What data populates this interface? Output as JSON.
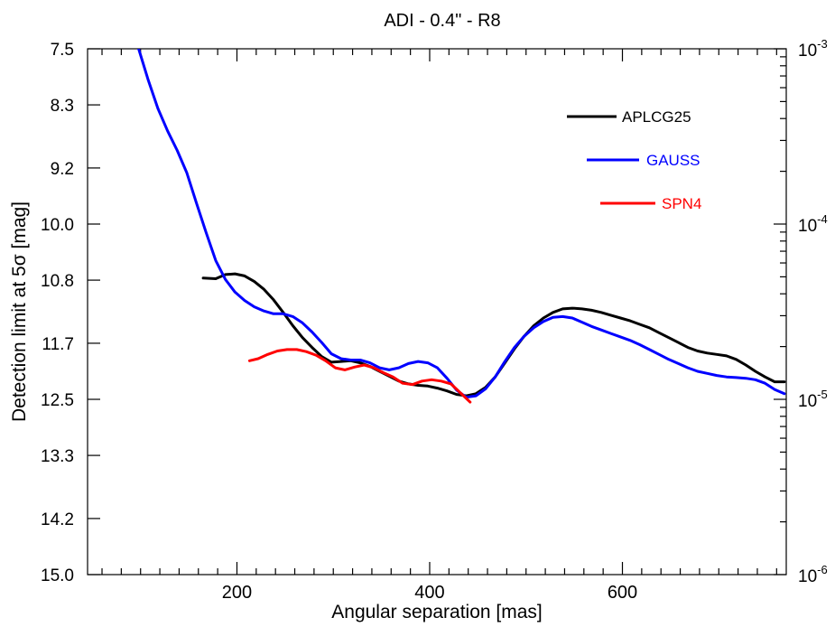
{
  "chart_data": {
    "type": "line",
    "title": "ADI -  0.4\" - R8",
    "xlabel": "Angular separation [mas]",
    "ylabel": "Detection limit at 5σ  [mag]",
    "xlim": [
      45,
      770
    ],
    "ylim": [
      7.5,
      15.0
    ],
    "y_inverted": true,
    "xticks": [
      200,
      400,
      600
    ],
    "x_minor_step": 20,
    "yticks": [
      7.5,
      8.3,
      9.2,
      10.0,
      10.8,
      11.7,
      12.5,
      13.3,
      14.2,
      15.0
    ],
    "ytick_labels": [
      "7.5",
      "8.3",
      "9.2",
      "10.0",
      "10.8",
      "11.7",
      "12.5",
      "13.3",
      "14.2",
      "15.0"
    ],
    "right_axis": {
      "scale": "log",
      "range": [
        0.001,
        1e-06
      ],
      "major_ticks": [
        {
          "value": 0.001,
          "base": "10",
          "exp": "-3"
        },
        {
          "value": 0.0001,
          "base": "10",
          "exp": "-4"
        },
        {
          "value": 1e-05,
          "base": "10",
          "exp": "-5"
        },
        {
          "value": 1e-06,
          "base": "10",
          "exp": "-6"
        }
      ]
    },
    "grid": false,
    "legend_position": "top-right",
    "series": [
      {
        "name": "APLCG25",
        "color": "#000000",
        "points": [
          [
            165,
            10.77
          ],
          [
            178,
            10.78
          ],
          [
            188,
            10.72
          ],
          [
            198,
            10.71
          ],
          [
            208,
            10.74
          ],
          [
            218,
            10.82
          ],
          [
            228,
            10.93
          ],
          [
            238,
            11.08
          ],
          [
            248,
            11.26
          ],
          [
            258,
            11.45
          ],
          [
            268,
            11.62
          ],
          [
            278,
            11.76
          ],
          [
            288,
            11.89
          ],
          [
            298,
            11.97
          ],
          [
            308,
            11.96
          ],
          [
            318,
            11.95
          ],
          [
            328,
            11.98
          ],
          [
            338,
            12.03
          ],
          [
            348,
            12.1
          ],
          [
            358,
            12.17
          ],
          [
            368,
            12.24
          ],
          [
            378,
            12.28
          ],
          [
            388,
            12.3
          ],
          [
            398,
            12.31
          ],
          [
            408,
            12.34
          ],
          [
            418,
            12.38
          ],
          [
            428,
            12.43
          ],
          [
            438,
            12.45
          ],
          [
            448,
            12.42
          ],
          [
            458,
            12.33
          ],
          [
            468,
            12.18
          ],
          [
            478,
            11.98
          ],
          [
            488,
            11.78
          ],
          [
            498,
            11.6
          ],
          [
            508,
            11.45
          ],
          [
            518,
            11.34
          ],
          [
            528,
            11.26
          ],
          [
            538,
            11.21
          ],
          [
            548,
            11.2
          ],
          [
            558,
            11.21
          ],
          [
            568,
            11.23
          ],
          [
            578,
            11.26
          ],
          [
            588,
            11.3
          ],
          [
            598,
            11.34
          ],
          [
            608,
            11.38
          ],
          [
            618,
            11.43
          ],
          [
            628,
            11.48
          ],
          [
            638,
            11.55
          ],
          [
            648,
            11.62
          ],
          [
            658,
            11.69
          ],
          [
            668,
            11.76
          ],
          [
            678,
            11.81
          ],
          [
            688,
            11.84
          ],
          [
            698,
            11.86
          ],
          [
            708,
            11.88
          ],
          [
            718,
            11.93
          ],
          [
            728,
            12.01
          ],
          [
            738,
            12.1
          ],
          [
            748,
            12.18
          ],
          [
            758,
            12.25
          ],
          [
            768,
            12.25
          ]
        ]
      },
      {
        "name": "GAUSS",
        "color": "#0000ff",
        "points": [
          [
            98,
            7.5
          ],
          [
            108,
            7.95
          ],
          [
            118,
            8.35
          ],
          [
            128,
            8.67
          ],
          [
            138,
            8.95
          ],
          [
            148,
            9.27
          ],
          [
            158,
            9.7
          ],
          [
            168,
            10.12
          ],
          [
            178,
            10.52
          ],
          [
            188,
            10.79
          ],
          [
            198,
            10.97
          ],
          [
            208,
            11.09
          ],
          [
            218,
            11.18
          ],
          [
            228,
            11.24
          ],
          [
            238,
            11.28
          ],
          [
            248,
            11.28
          ],
          [
            258,
            11.32
          ],
          [
            268,
            11.41
          ],
          [
            278,
            11.54
          ],
          [
            288,
            11.69
          ],
          [
            298,
            11.85
          ],
          [
            308,
            11.92
          ],
          [
            318,
            11.94
          ],
          [
            328,
            11.94
          ],
          [
            338,
            11.98
          ],
          [
            348,
            12.05
          ],
          [
            358,
            12.08
          ],
          [
            368,
            12.05
          ],
          [
            378,
            11.99
          ],
          [
            388,
            11.96
          ],
          [
            398,
            11.98
          ],
          [
            408,
            12.05
          ],
          [
            418,
            12.2
          ],
          [
            428,
            12.37
          ],
          [
            438,
            12.47
          ],
          [
            448,
            12.45
          ],
          [
            458,
            12.35
          ],
          [
            468,
            12.18
          ],
          [
            478,
            11.96
          ],
          [
            488,
            11.76
          ],
          [
            498,
            11.6
          ],
          [
            508,
            11.48
          ],
          [
            518,
            11.39
          ],
          [
            528,
            11.33
          ],
          [
            538,
            11.32
          ],
          [
            548,
            11.34
          ],
          [
            558,
            11.4
          ],
          [
            568,
            11.46
          ],
          [
            578,
            11.51
          ],
          [
            588,
            11.56
          ],
          [
            598,
            11.61
          ],
          [
            608,
            11.66
          ],
          [
            618,
            11.72
          ],
          [
            628,
            11.79
          ],
          [
            638,
            11.86
          ],
          [
            648,
            11.93
          ],
          [
            658,
            11.99
          ],
          [
            668,
            12.05
          ],
          [
            678,
            12.1
          ],
          [
            688,
            12.13
          ],
          [
            698,
            12.16
          ],
          [
            708,
            12.18
          ],
          [
            718,
            12.19
          ],
          [
            728,
            12.2
          ],
          [
            738,
            12.22
          ],
          [
            748,
            12.27
          ],
          [
            758,
            12.36
          ],
          [
            768,
            12.42
          ]
        ]
      },
      {
        "name": "SPN4",
        "color": "#ff0000",
        "points": [
          [
            213,
            11.95
          ],
          [
            222,
            11.92
          ],
          [
            232,
            11.86
          ],
          [
            242,
            11.81
          ],
          [
            252,
            11.79
          ],
          [
            262,
            11.79
          ],
          [
            272,
            11.82
          ],
          [
            282,
            11.87
          ],
          [
            292,
            11.95
          ],
          [
            302,
            12.05
          ],
          [
            312,
            12.08
          ],
          [
            322,
            12.04
          ],
          [
            332,
            12.01
          ],
          [
            342,
            12.05
          ],
          [
            352,
            12.12
          ],
          [
            362,
            12.18
          ],
          [
            372,
            12.27
          ],
          [
            382,
            12.29
          ],
          [
            392,
            12.24
          ],
          [
            402,
            12.22
          ],
          [
            412,
            12.24
          ],
          [
            422,
            12.28
          ],
          [
            432,
            12.41
          ],
          [
            442,
            12.54
          ]
        ]
      }
    ]
  }
}
